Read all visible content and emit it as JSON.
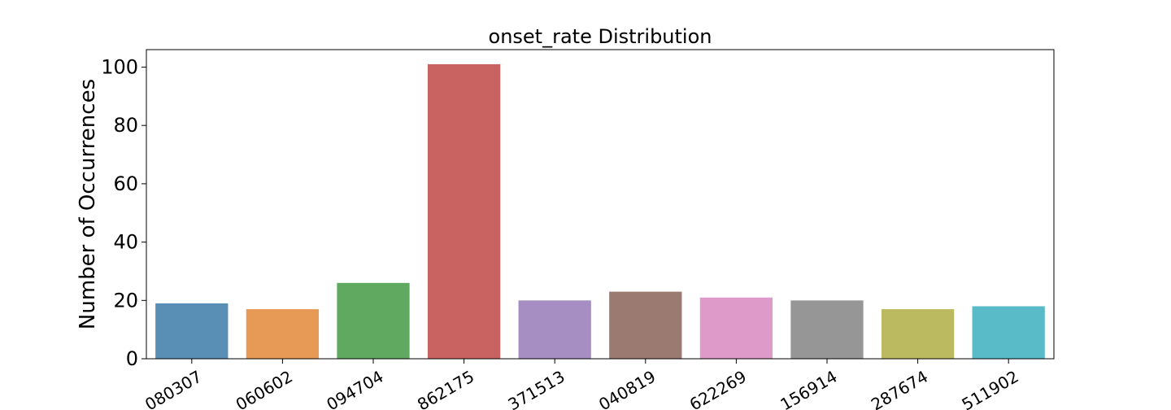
{
  "chart_data": {
    "type": "bar",
    "title": "onset_rate Distribution",
    "xlabel": "",
    "ylabel": "Number of Occurrences",
    "categories": [
      "080307",
      "060602",
      "094704",
      "862175",
      "371513",
      "040819",
      "622269",
      "156914",
      "287674",
      "511902"
    ],
    "values": [
      19,
      17,
      26,
      101,
      20,
      23,
      21,
      20,
      17,
      18
    ],
    "colors": [
      "#5a8fb5",
      "#e79a56",
      "#60a960",
      "#c96362",
      "#a78ec2",
      "#9b7a71",
      "#de9bc9",
      "#969696",
      "#bbba61",
      "#58bbc7"
    ],
    "ylim": [
      0,
      106
    ],
    "yticks": [
      0,
      20,
      40,
      60,
      80,
      100
    ],
    "grid": false,
    "legend": "none"
  }
}
